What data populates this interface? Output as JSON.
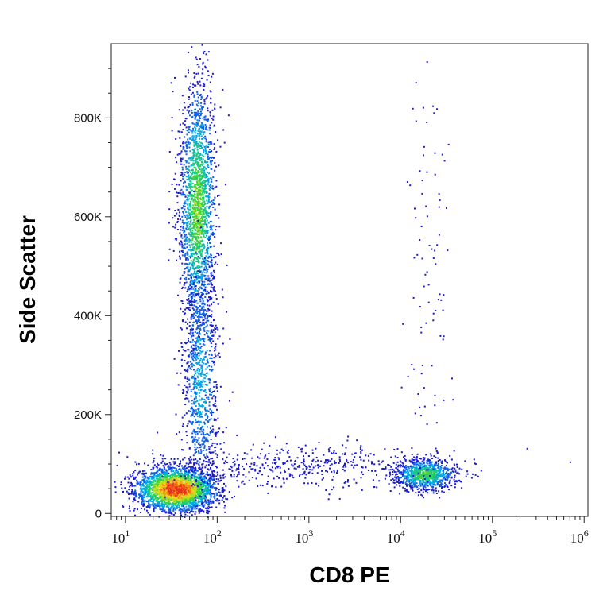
{
  "chart_data": {
    "type": "scatter",
    "subtype": "flow-cytometry density dot plot (pseudocolor)",
    "title": "",
    "xlabel": "CD8 PE",
    "ylabel": "Side Scatter",
    "x_scale": "log",
    "y_scale": "linear",
    "xlim": [
      7,
      1100000
    ],
    "ylim": [
      -6000,
      950000
    ],
    "x_ticks": [
      {
        "value": 10,
        "base": "10",
        "exp": "1"
      },
      {
        "value": 100,
        "base": "10",
        "exp": "2"
      },
      {
        "value": 1000,
        "base": "10",
        "exp": "3"
      },
      {
        "value": 10000,
        "base": "10",
        "exp": "4"
      },
      {
        "value": 100000,
        "base": "10",
        "exp": "5"
      },
      {
        "value": 1000000,
        "base": "10",
        "exp": "6"
      }
    ],
    "y_ticks": [
      {
        "value": 0,
        "label": "0"
      },
      {
        "value": 200000,
        "label": "200K"
      },
      {
        "value": 400000,
        "label": "400K"
      },
      {
        "value": 600000,
        "label": "600K"
      },
      {
        "value": 800000,
        "label": "800K"
      }
    ],
    "grid": false,
    "legend": "none",
    "density_colors": [
      "#1a1acc",
      "#0e5fe8",
      "#00a6e6",
      "#15c98a",
      "#3ed43a",
      "#b6dc1e",
      "#f2d21a",
      "#f57d12",
      "#e6301c"
    ],
    "populations": [
      {
        "name": "low SSC, CD8-negative cluster",
        "x_center": 35,
        "y_center": 50000,
        "x_spread_log10": 0.22,
        "y_spread": 22000,
        "count": 2600,
        "peak_density": 1.0
      },
      {
        "name": "high SSC, CD8-negative (granulocytes)",
        "x_center": 60,
        "y_center": 620000,
        "x_spread_log10": 0.1,
        "y_spread": 130000,
        "count": 2000,
        "peak_density": 0.55
      },
      {
        "name": "intermediate SSC streak",
        "x_center": 65,
        "y_center": 270000,
        "x_spread_log10": 0.1,
        "y_spread": 120000,
        "count": 900,
        "peak_density": 0.3
      },
      {
        "name": "CD8-positive lymphocytes",
        "x_center": 18000,
        "y_center": 80000,
        "x_spread_log10": 0.17,
        "y_spread": 16000,
        "count": 900,
        "peak_density": 0.5
      },
      {
        "name": "low SSC transitional events",
        "x_center": 900,
        "y_center": 95000,
        "x_spread_log10": 0.75,
        "y_spread": 22000,
        "count": 450,
        "peak_density": 0.08
      },
      {
        "name": "CD8-positive high SSC scatter",
        "x_center": 20000,
        "y_center": 500000,
        "x_spread_log10": 0.12,
        "y_spread": 220000,
        "count": 90,
        "peak_density": 0.03
      }
    ]
  }
}
